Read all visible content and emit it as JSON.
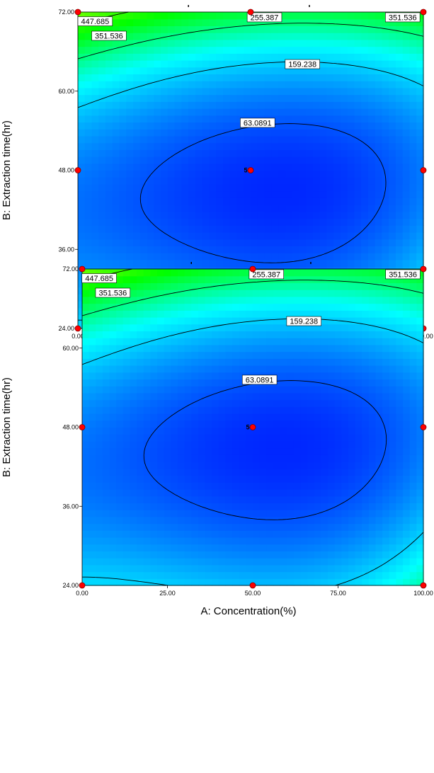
{
  "chart_data": [
    {
      "type": "heatmap",
      "xlabel": "A: Concentration(%)",
      "ylabel": "B: Extraction time(hr)",
      "xlim": [
        0,
        100
      ],
      "ylim": [
        24,
        72
      ],
      "x_ticks": [
        "0.00",
        "25.00",
        "50.00",
        "75.00",
        "100.00"
      ],
      "y_ticks": [
        "24.00",
        "36.00",
        "48.00",
        "60.00",
        "72.00"
      ],
      "contour_levels": [
        {
          "label": "447.685",
          "value": 447.685
        },
        {
          "label": "351.536",
          "value": 351.536
        },
        {
          "label": "255.387",
          "value": 255.387
        },
        {
          "label": "159.238",
          "value": 159.238
        },
        {
          "label": "63.0891",
          "value": 63.0891
        }
      ],
      "contour_labels": [
        {
          "text": "447.685",
          "x": 5,
          "y": 70.6
        },
        {
          "text": "351.536",
          "x": 9,
          "y": 68.4
        },
        {
          "text": "255.387",
          "x": 54,
          "y": 71.2
        },
        {
          "text": "351.536",
          "x": 94,
          "y": 71.2
        },
        {
          "text": "159.238",
          "x": 65,
          "y": 64.1
        },
        {
          "text": "63.0891",
          "x": 52,
          "y": 55.2
        }
      ],
      "design_points": [
        {
          "x": 0,
          "y": 72
        },
        {
          "x": 50,
          "y": 72
        },
        {
          "x": 100,
          "y": 72
        },
        {
          "x": 0,
          "y": 48
        },
        {
          "x": 50,
          "y": 48
        },
        {
          "x": 100,
          "y": 48
        },
        {
          "x": 0,
          "y": 24
        },
        {
          "x": 50,
          "y": 24
        },
        {
          "x": 100,
          "y": 24
        }
      ],
      "replicate_label": {
        "text": "5",
        "x": 50,
        "y": 48
      },
      "colorscale": [
        "#0000ff",
        "#00ffff",
        "#00ff00",
        "#ffff00"
      ]
    },
    {
      "type": "heatmap",
      "xlabel": "A: Concentration(%)",
      "ylabel": "B: Extraction time(hr)",
      "xlim": [
        0,
        100
      ],
      "ylim": [
        24,
        72
      ],
      "x_ticks": [
        "0.00",
        "25.00",
        "50.00",
        "75.00",
        "100.00"
      ],
      "y_ticks": [
        "24.00",
        "36.00",
        "48.00",
        "60.00",
        "72.00"
      ],
      "contour_levels": [
        {
          "label": "447.685",
          "value": 447.685
        },
        {
          "label": "351.536",
          "value": 351.536
        },
        {
          "label": "255.387",
          "value": 255.387
        },
        {
          "label": "159.238",
          "value": 159.238
        },
        {
          "label": "63.0891",
          "value": 63.0891
        }
      ],
      "contour_labels": [
        {
          "text": "447.685",
          "x": 5,
          "y": 70.6
        },
        {
          "text": "351.536",
          "x": 9,
          "y": 68.4
        },
        {
          "text": "255.387",
          "x": 54,
          "y": 71.2
        },
        {
          "text": "351.536",
          "x": 94,
          "y": 71.2
        },
        {
          "text": "159.238",
          "x": 65,
          "y": 64.1
        },
        {
          "text": "63.0891",
          "x": 52,
          "y": 55.2
        }
      ],
      "design_points": [
        {
          "x": 0,
          "y": 72
        },
        {
          "x": 50,
          "y": 72
        },
        {
          "x": 100,
          "y": 72
        },
        {
          "x": 0,
          "y": 48
        },
        {
          "x": 50,
          "y": 48
        },
        {
          "x": 100,
          "y": 48
        },
        {
          "x": 0,
          "y": 24
        },
        {
          "x": 50,
          "y": 24
        },
        {
          "x": 100,
          "y": 24
        }
      ],
      "replicate_label": {
        "text": "5",
        "x": 50,
        "y": 48
      },
      "colorscale": [
        "#0000ff",
        "#00ffff",
        "#00ff00",
        "#ffff00"
      ]
    }
  ]
}
